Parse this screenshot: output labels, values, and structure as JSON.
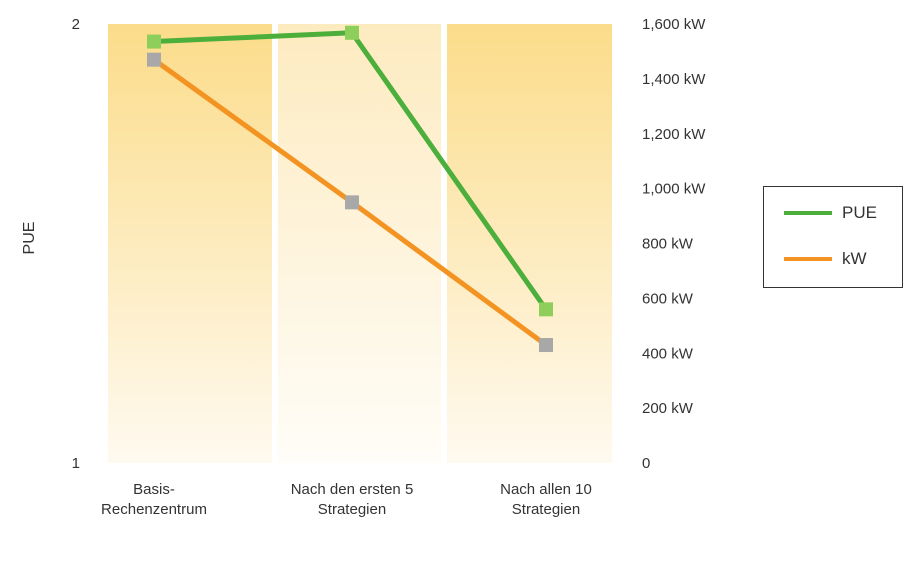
{
  "chart_data": {
    "type": "line",
    "categories": [
      [
        "Basis-",
        "Rechenzentrum"
      ],
      [
        "Nach den ersten 5",
        "Strategien"
      ],
      [
        "Nach allen 10",
        "Strategien"
      ]
    ],
    "series": [
      {
        "name": "PUE",
        "axis": "left",
        "values": [
          1.96,
          1.98,
          1.35
        ],
        "color": "#4caf3c",
        "marker_color": "#8dcf5a"
      },
      {
        "name": "kW",
        "axis": "right",
        "values": [
          1470,
          950,
          430
        ],
        "color": "#f39322",
        "marker_color": "#a8a8a8"
      }
    ],
    "ylabel": "PUE",
    "ylim": [
      1,
      2
    ],
    "y_ticks": [
      "1",
      "2"
    ],
    "y2lim": [
      0,
      1600
    ],
    "y2_ticks": [
      "0",
      "200 kW",
      "400 kW",
      "600 kW",
      "800 kW",
      "1,000 kW",
      "1,200 kW",
      "1,400 kW",
      "1,600 kW"
    ],
    "legend": {
      "position": "right",
      "items": [
        "PUE",
        "kW"
      ]
    },
    "background_color": "#fbdc8a"
  }
}
